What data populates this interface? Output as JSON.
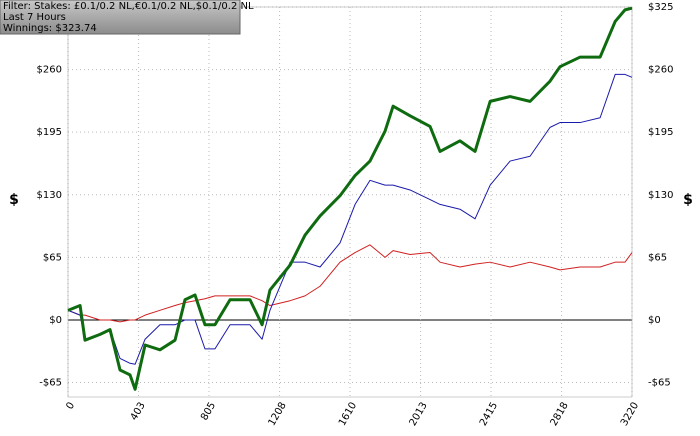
{
  "chart_data": {
    "type": "line",
    "info": [
      "Filter: Stakes: £0.1/0.2 NL,€0.1/0.2 NL,$0.1/0.2 NL",
      "Last  7 Hours",
      "Winnings: $323.74"
    ],
    "y_label": "$",
    "xlim": [
      0,
      3220
    ],
    "xticks": [
      0,
      403,
      805,
      1208,
      1610,
      2013,
      2415,
      2818,
      3220
    ],
    "ylim": [
      -80,
      325
    ],
    "yticks": [
      {
        "value": -65,
        "label": "-$65"
      },
      {
        "value": 0,
        "label": "$0"
      },
      {
        "value": 65,
        "label": "$65"
      },
      {
        "value": 130,
        "label": "$130"
      },
      {
        "value": 195,
        "label": "$195"
      },
      {
        "value": 260,
        "label": "$260"
      },
      {
        "value": 325,
        "label": "$325"
      }
    ],
    "grid": true,
    "x": [
      0,
      69,
      97,
      183,
      240,
      297,
      354,
      383,
      440,
      525,
      611,
      668,
      725,
      782,
      839,
      925,
      1039,
      1108,
      1153,
      1268,
      1353,
      1439,
      1553,
      1639,
      1724,
      1810,
      1856,
      1953,
      2067,
      2124,
      2238,
      2324,
      2410,
      2524,
      2638,
      2752,
      2809,
      2924,
      3038,
      3124,
      3180,
      3220
    ],
    "series": [
      {
        "color": "#d02020",
        "width": 1,
        "values": [
          10,
          5,
          5,
          0,
          0,
          -2,
          0,
          0,
          5,
          10,
          15,
          18,
          20,
          22,
          25,
          25,
          25,
          20,
          15,
          20,
          25,
          35,
          60,
          70,
          78,
          65,
          72,
          68,
          70,
          60,
          55,
          58,
          60,
          55,
          60,
          55,
          52,
          55,
          55,
          60,
          60,
          70
        ]
      },
      {
        "color": "#1a1aaa",
        "width": 1,
        "values": [
          10,
          5,
          -20,
          -15,
          -10,
          -40,
          -45,
          -46,
          -20,
          -5,
          -5,
          0,
          0,
          -30,
          -30,
          -5,
          -5,
          -20,
          10,
          60,
          60,
          55,
          80,
          120,
          145,
          140,
          140,
          135,
          125,
          120,
          115,
          105,
          140,
          165,
          170,
          200,
          205,
          205,
          210,
          255,
          255,
          252
        ]
      },
      {
        "color": "#0f6b0f",
        "width": 3,
        "values": [
          10,
          15,
          -21,
          -15,
          -10,
          -52,
          -57,
          -72,
          -26,
          -31,
          -21,
          21,
          26,
          -5,
          -5,
          21,
          21,
          -5,
          31,
          57,
          88,
          108,
          129,
          150,
          165,
          196,
          222,
          212,
          201,
          175,
          186,
          175,
          227,
          232,
          227,
          248,
          263,
          273,
          273,
          310,
          322,
          323.74
        ]
      }
    ]
  }
}
